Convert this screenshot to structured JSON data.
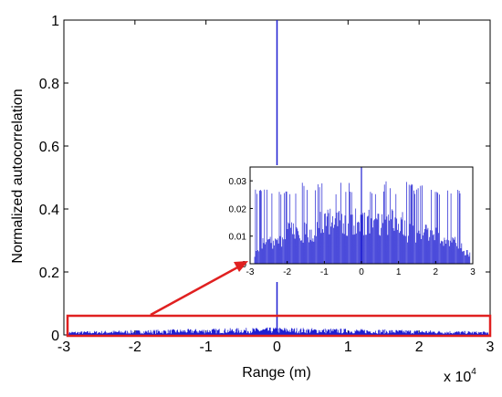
{
  "chart_data": [
    {
      "type": "line",
      "role": "main",
      "xlabel": "Range (m)",
      "ylabel": "Normalized autocorrelation",
      "xlim": [
        -30000,
        30000
      ],
      "ylim": [
        0,
        1
      ],
      "x_exponent_label": "x 10",
      "x_exponent_power": "4",
      "x_ticks": [
        "-3",
        "-2",
        "-1",
        "0",
        "1",
        "2",
        "3"
      ],
      "x_tick_values": [
        -3,
        -2,
        -1,
        0,
        1,
        2,
        3
      ],
      "y_ticks": [
        "0",
        "0.2",
        "0.4",
        "0.6",
        "0.8",
        "1"
      ],
      "y_tick_values": [
        0,
        0.2,
        0.4,
        0.6,
        0.8,
        1
      ],
      "series": [
        {
          "points": [
            [
              -30000,
              0
            ],
            [
              0,
              1
            ],
            [
              30000,
              0
            ]
          ],
          "peak_range_m": 0,
          "peak_value": 1,
          "sidelobe_max": 0.035
        }
      ],
      "grid": false,
      "color": "#1f1fd2"
    },
    {
      "type": "line",
      "role": "inset-zoom",
      "xlim": [
        -30000,
        30000
      ],
      "ylim": [
        0,
        0.035
      ],
      "x_ticks": [
        "-3",
        "-2",
        "-1",
        "0",
        "1",
        "2",
        "3"
      ],
      "x_tick_values": [
        -3,
        -2,
        -1,
        0,
        1,
        2,
        3
      ],
      "y_ticks": [
        "0",
        "0.01",
        "0.02",
        "0.03"
      ],
      "y_tick_values": [
        0,
        0.01,
        0.02,
        0.03
      ],
      "series": [
        {
          "sidelobe_levels": [
            0.002,
            0.005,
            0.01,
            0.015,
            0.02,
            0.025,
            0.03,
            0.035
          ],
          "peak_sidelobe": 0.035
        }
      ],
      "color": "#1f1fd2"
    }
  ],
  "annotation": {
    "highlight_color": "#e02020",
    "arrow_color": "#e02020"
  }
}
